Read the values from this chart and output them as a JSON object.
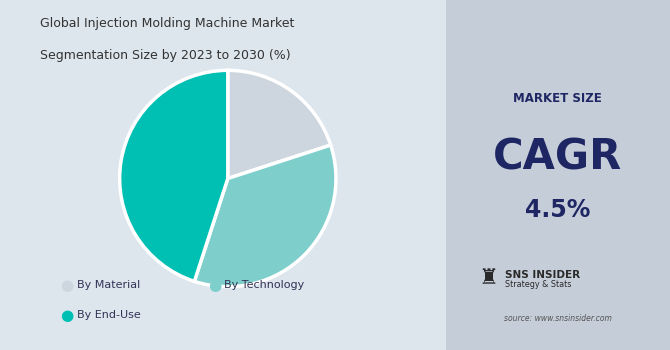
{
  "title_line1": "Global Injection Molding Machine Market",
  "title_line2": "Segmentation Size by 2023 to 2030 (%)",
  "pie_values": [
    20,
    35,
    45
  ],
  "pie_colors": [
    "#cdd6de",
    "#7ecfcb",
    "#00bfb3"
  ],
  "pie_labels": [
    "By Material",
    "By Technology",
    "By End-Use"
  ],
  "pie_startangle": 90,
  "left_bg": "#dde5ed",
  "right_bg": "#c5cdd8",
  "market_size_label": "MARKET SIZE",
  "cagr_label": "CAGR",
  "cagr_value": "4.5%",
  "dark_blue": "#1e2663",
  "source_text": "source: www.snsinsider.com",
  "brand_name": "SNS INSIDER",
  "brand_subtitle": "Strategy & Stats"
}
